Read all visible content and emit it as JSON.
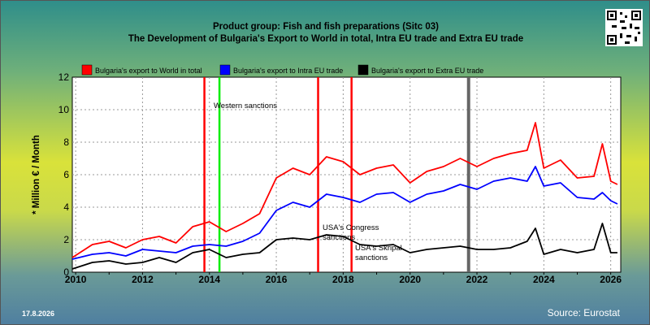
{
  "header": {
    "title_line1": "Product group: Fish and fish preparations (Sitc 03)",
    "title_line2": "The Development of Bulgaria's Export to World in total, Intra EU trade and Extra EU trade"
  },
  "footer": {
    "date": "17.8.2026",
    "source": "Source: Eurostat"
  },
  "colors": {
    "world": "#ff0000",
    "intra": "#0000ff",
    "extra": "#000000",
    "sanction_red": "#ff0000",
    "sanction_green": "#00ee00",
    "marker_gray": "#666666"
  },
  "chart_data": {
    "type": "line",
    "title": "The Development of Bulgaria's Export to World in total, Intra EU trade and Extra EU trade",
    "subtitle": "Product group: Fish and fish preparations (Sitc 03)",
    "ylabel": "* Million € / Month",
    "xlabel": "",
    "xlim": [
      2009.9,
      2026.3
    ],
    "ylim": [
      0,
      12
    ],
    "yticks": [
      0,
      2,
      4,
      6,
      8,
      10,
      12
    ],
    "xticks": [
      "2010",
      "2012",
      "2014",
      "2016",
      "2018",
      "2020",
      "2022",
      "2024",
      "2026"
    ],
    "grid": true,
    "legend_position": "top",
    "series": [
      {
        "name": "Bulgaria's export to World in total",
        "color": "#ff0000",
        "x": [
          2009.9,
          2010.5,
          2011.0,
          2011.5,
          2012.0,
          2012.5,
          2013.0,
          2013.5,
          2014.0,
          2014.5,
          2015.0,
          2015.5,
          2016.0,
          2016.5,
          2017.0,
          2017.5,
          2018.0,
          2018.5,
          2019.0,
          2019.5,
          2020.0,
          2020.5,
          2021.0,
          2021.5,
          2022.0,
          2022.5,
          2023.0,
          2023.5,
          2023.75,
          2024.0,
          2024.5,
          2025.0,
          2025.5,
          2025.75,
          2026.0,
          2026.2
        ],
        "y": [
          0.9,
          1.7,
          1.9,
          1.5,
          2.0,
          2.2,
          1.8,
          2.8,
          3.1,
          2.5,
          3.0,
          3.6,
          5.8,
          6.4,
          6.0,
          7.1,
          6.8,
          6.0,
          6.4,
          6.6,
          5.5,
          6.2,
          6.5,
          7.0,
          6.5,
          7.0,
          7.3,
          7.5,
          9.2,
          6.4,
          6.9,
          5.8,
          5.9,
          7.9,
          5.6,
          5.4
        ]
      },
      {
        "name": "Bulgaria's export to Intra EU trade",
        "color": "#0000ff",
        "x": [
          2009.9,
          2010.5,
          2011.0,
          2011.5,
          2012.0,
          2012.5,
          2013.0,
          2013.5,
          2014.0,
          2014.5,
          2015.0,
          2015.5,
          2016.0,
          2016.5,
          2017.0,
          2017.5,
          2018.0,
          2018.5,
          2019.0,
          2019.5,
          2020.0,
          2020.5,
          2021.0,
          2021.5,
          2022.0,
          2022.5,
          2023.0,
          2023.5,
          2023.75,
          2024.0,
          2024.5,
          2025.0,
          2025.5,
          2025.75,
          2026.0,
          2026.2
        ],
        "y": [
          0.8,
          1.1,
          1.2,
          1.0,
          1.4,
          1.3,
          1.2,
          1.6,
          1.7,
          1.6,
          1.9,
          2.4,
          3.8,
          4.3,
          4.0,
          4.8,
          4.6,
          4.3,
          4.8,
          4.9,
          4.3,
          4.8,
          5.0,
          5.4,
          5.1,
          5.6,
          5.8,
          5.6,
          6.5,
          5.3,
          5.5,
          4.6,
          4.5,
          4.9,
          4.4,
          4.2
        ]
      },
      {
        "name": "Bulgaria's export to Extra EU trade",
        "color": "#000000",
        "x": [
          2009.9,
          2010.5,
          2011.0,
          2011.5,
          2012.0,
          2012.5,
          2013.0,
          2013.5,
          2014.0,
          2014.5,
          2015.0,
          2015.5,
          2016.0,
          2016.5,
          2017.0,
          2017.5,
          2018.0,
          2018.5,
          2019.0,
          2019.5,
          2020.0,
          2020.5,
          2021.0,
          2021.5,
          2022.0,
          2022.5,
          2023.0,
          2023.5,
          2023.75,
          2024.0,
          2024.5,
          2025.0,
          2025.5,
          2025.75,
          2026.0,
          2026.2
        ],
        "y": [
          0.2,
          0.6,
          0.7,
          0.5,
          0.6,
          0.9,
          0.6,
          1.2,
          1.4,
          0.9,
          1.1,
          1.2,
          2.0,
          2.1,
          2.0,
          2.3,
          2.2,
          1.7,
          1.6,
          1.7,
          1.2,
          1.4,
          1.5,
          1.6,
          1.4,
          1.4,
          1.5,
          1.9,
          2.7,
          1.1,
          1.4,
          1.2,
          1.4,
          3.0,
          1.2,
          1.2
        ]
      }
    ],
    "vertical_markers": [
      {
        "x": 2013.85,
        "color": "#ff0000",
        "label": ""
      },
      {
        "x": 2014.3,
        "color": "#00ee00",
        "label": "Western sanctions"
      },
      {
        "x": 2017.25,
        "color": "#ff0000",
        "label": "USA's Congress sanctions"
      },
      {
        "x": 2018.25,
        "color": "#ff0000",
        "label": "USA's Skripal sanctions"
      },
      {
        "x": 2021.75,
        "color": "#666666",
        "label": ""
      }
    ]
  }
}
